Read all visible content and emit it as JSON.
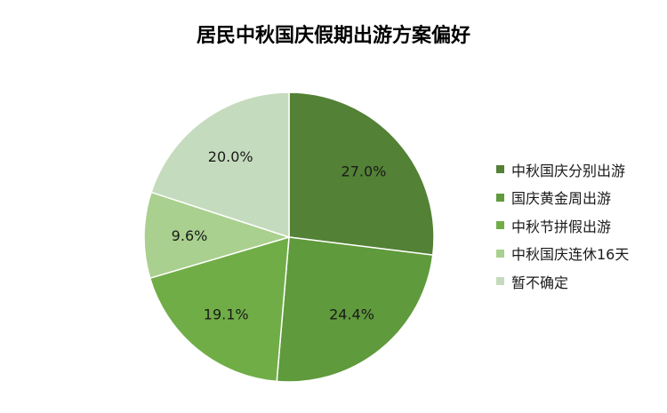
{
  "chart_data": {
    "type": "pie",
    "title": "居民中秋国庆假期出游方案偏好",
    "categories": [
      "中秋国庆分别出游",
      "国庆黄金周出游",
      "中秋节拼假出游",
      "中秋国庆连休16天",
      "暂不确定"
    ],
    "values": [
      27.0,
      24.4,
      19.1,
      9.6,
      20.0
    ],
    "value_labels": [
      "27.0%",
      "24.4%",
      "19.1%",
      "9.6%",
      "20.0%"
    ],
    "colors": [
      "#538135",
      "#5f9a3c",
      "#70ad47",
      "#a9d08e",
      "#c5dbbd"
    ],
    "legend_position": "right",
    "start_angle": "12 o'clock",
    "direction": "clockwise"
  }
}
